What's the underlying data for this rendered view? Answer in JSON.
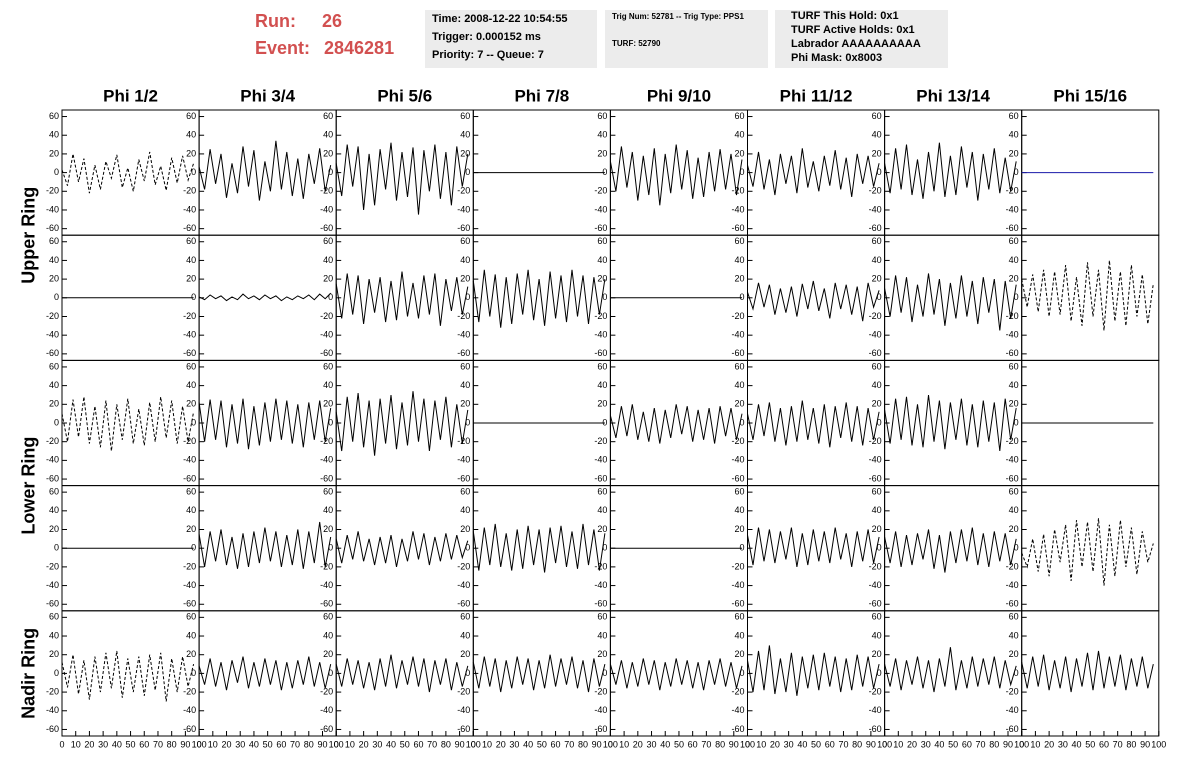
{
  "header": {
    "run_label": "Run:",
    "run": "26",
    "event_label": "Event:",
    "event": "2846281",
    "boxes": [
      {
        "lines": [
          "Time: 2008-12-22 10:54:55",
          "Trigger: 0.000152 ms",
          "Priority: 7 -- Queue: 7"
        ]
      },
      {
        "lines": [
          "Trig Num: 52781 -- Trig Type: PPS1",
          "TURF: 52790"
        ]
      },
      {
        "lines": [
          "TURF This Hold: 0x1",
          "TURF Active Holds: 0x1",
          "Labrador AAAAAAAAAA",
          "Phi Mask: 0x8003"
        ]
      }
    ]
  },
  "chart_data": {
    "type": "line",
    "columns": [
      "Phi 1/2",
      "Phi 3/4",
      "Phi 5/6",
      "Phi 7/8",
      "Phi 9/10",
      "Phi 11/12",
      "Phi 13/14",
      "Phi 15/16"
    ],
    "rows": [
      "Upper Ring",
      "Lower Ring",
      "Nadir Ring"
    ],
    "ylim": [
      -67,
      67
    ],
    "yticks": [
      60,
      40,
      20,
      0,
      -20,
      -40,
      -60
    ],
    "xlim": [
      0,
      100
    ],
    "xticks": [
      0,
      10,
      20,
      30,
      40,
      50,
      60,
      70,
      80,
      90,
      100
    ],
    "x": [
      0,
      4,
      8,
      12,
      16,
      20,
      24,
      28,
      32,
      36,
      40,
      44,
      48,
      52,
      56,
      60,
      64,
      68,
      72,
      76,
      80,
      84,
      88,
      92,
      96
    ],
    "panels": [
      {
        "color": "#000000",
        "dashed": true,
        "values": [
          3,
          -14,
          20,
          -10,
          15,
          -22,
          8,
          -18,
          12,
          -6,
          19,
          -16,
          5,
          -20,
          14,
          -9,
          22,
          -13,
          7,
          -19,
          16,
          -11,
          18,
          -8,
          10
        ]
      },
      {
        "color": "#000000",
        "dashed": false,
        "values": [
          6,
          -18,
          25,
          -12,
          20,
          -27,
          10,
          -22,
          28,
          -15,
          24,
          -30,
          12,
          -20,
          34,
          -18,
          22,
          -25,
          15,
          -28,
          20,
          -12,
          26,
          -20,
          8
        ]
      },
      {
        "color": "#000000",
        "dashed": false,
        "values": [
          10,
          -25,
          30,
          -15,
          28,
          -40,
          20,
          -35,
          25,
          -18,
          32,
          -30,
          22,
          -26,
          27,
          -45,
          24,
          -20,
          30,
          -28,
          22,
          -35,
          28,
          -15,
          20
        ]
      },
      {
        "color": "#000000",
        "dashed": false,
        "values": [
          0,
          0,
          0,
          0,
          0,
          0,
          0,
          0,
          0,
          0,
          0,
          0,
          0,
          0,
          0,
          0,
          0,
          0,
          0,
          0,
          0,
          0,
          0,
          0,
          0
        ]
      },
      {
        "color": "#000000",
        "dashed": false,
        "values": [
          12,
          -20,
          28,
          -16,
          22,
          -30,
          18,
          -24,
          26,
          -35,
          20,
          -22,
          30,
          -18,
          24,
          -28,
          16,
          -26,
          22,
          -20,
          25,
          -18,
          20,
          -24,
          14
        ]
      },
      {
        "color": "#000000",
        "dashed": false,
        "values": [
          8,
          -15,
          22,
          -18,
          14,
          -24,
          20,
          -12,
          18,
          -22,
          26,
          -16,
          12,
          -20,
          18,
          -14,
          24,
          -18,
          16,
          -26,
          20,
          -12,
          18,
          -15,
          10
        ]
      },
      {
        "color": "#000000",
        "dashed": false,
        "values": [
          10,
          -22,
          26,
          -18,
          30,
          -24,
          14,
          -28,
          22,
          -20,
          32,
          -26,
          18,
          -24,
          28,
          -16,
          22,
          -30,
          20,
          -18,
          26,
          -22,
          16,
          -20,
          12
        ]
      },
      {
        "color": "#1a1aaa",
        "dashed": false,
        "values": [
          0,
          0,
          0,
          0,
          0,
          0,
          0,
          0,
          0,
          0,
          0,
          0,
          0,
          0,
          0,
          0,
          0,
          0,
          0,
          0,
          0,
          0,
          0,
          0,
          0
        ]
      },
      {
        "color": "#000000",
        "dashed": false,
        "values": [
          0,
          0,
          0,
          0,
          0,
          0,
          0,
          0,
          0,
          0,
          0,
          0,
          0,
          0,
          0,
          0,
          0,
          0,
          0,
          0,
          0,
          0,
          0,
          0,
          0
        ]
      },
      {
        "color": "#000000",
        "dashed": false,
        "values": [
          1,
          -2,
          3,
          -1,
          2,
          -3,
          1,
          -2,
          4,
          -1,
          2,
          -2,
          3,
          -1,
          2,
          -3,
          1,
          -2,
          2,
          -1,
          3,
          -2,
          4,
          -1,
          5
        ]
      },
      {
        "color": "#000000",
        "dashed": false,
        "values": [
          15,
          -22,
          26,
          -18,
          24,
          -28,
          20,
          -16,
          22,
          -26,
          18,
          -24,
          28,
          -20,
          16,
          -22,
          24,
          -18,
          26,
          -30,
          20,
          -14,
          22,
          -18,
          12
        ]
      },
      {
        "color": "#000000",
        "dashed": false,
        "values": [
          18,
          -26,
          30,
          -20,
          25,
          -32,
          22,
          -28,
          26,
          -18,
          30,
          -24,
          20,
          -30,
          28,
          -22,
          24,
          -26,
          30,
          -20,
          24,
          -28,
          22,
          -18,
          20
        ]
      },
      {
        "color": "#000000",
        "dashed": false,
        "values": [
          0,
          0,
          0,
          0,
          0,
          0,
          0,
          0,
          0,
          0,
          0,
          0,
          0,
          0,
          0,
          0,
          0,
          0,
          0,
          0,
          0,
          0,
          0,
          0,
          0
        ]
      },
      {
        "color": "#000000",
        "dashed": false,
        "values": [
          6,
          -12,
          16,
          -10,
          14,
          -18,
          10,
          -16,
          12,
          -20,
          15,
          -12,
          18,
          -14,
          10,
          -22,
          16,
          -12,
          14,
          -18,
          12,
          -25,
          16,
          -10,
          8
        ]
      },
      {
        "color": "#000000",
        "dashed": false,
        "values": [
          10,
          -20,
          24,
          -16,
          22,
          -26,
          14,
          -20,
          26,
          -18,
          20,
          -30,
          16,
          -22,
          24,
          -20,
          18,
          -28,
          22,
          -16,
          20,
          -35,
          18,
          -22,
          14
        ]
      },
      {
        "color": "#000000",
        "dashed": true,
        "values": [
          20,
          -10,
          25,
          -15,
          30,
          -20,
          28,
          -18,
          35,
          -25,
          22,
          -30,
          38,
          -20,
          30,
          -35,
          40,
          -25,
          28,
          -30,
          35,
          -20,
          25,
          -28,
          15
        ]
      },
      {
        "color": "#000000",
        "dashed": true,
        "values": [
          10,
          -20,
          25,
          -15,
          28,
          -22,
          18,
          -26,
          24,
          -30,
          20,
          -18,
          26,
          -22,
          15,
          -24,
          22,
          -20,
          28,
          -16,
          24,
          -22,
          18,
          -20,
          12
        ]
      },
      {
        "color": "#000000",
        "dashed": false,
        "values": [
          22,
          -20,
          25,
          -18,
          24,
          -26,
          20,
          -22,
          26,
          -28,
          18,
          -24,
          22,
          -20,
          26,
          -18,
          24,
          -22,
          20,
          -26,
          22,
          -18,
          24,
          -20,
          16
        ]
      },
      {
        "color": "#000000",
        "dashed": false,
        "values": [
          12,
          -30,
          28,
          -20,
          32,
          -26,
          24,
          -35,
          26,
          -22,
          30,
          -28,
          22,
          -24,
          34,
          -20,
          26,
          -30,
          24,
          -18,
          28,
          -26,
          20,
          -22,
          14
        ]
      },
      {
        "color": "#000000",
        "dashed": false,
        "values": [
          0,
          0,
          0,
          0,
          0,
          0,
          0,
          0,
          0,
          0,
          0,
          0,
          0,
          0,
          0,
          0,
          0,
          0,
          0,
          0,
          0,
          0,
          0,
          0,
          0
        ]
      },
      {
        "color": "#000000",
        "dashed": false,
        "values": [
          8,
          -16,
          18,
          -14,
          20,
          -18,
          12,
          -20,
          16,
          -22,
          14,
          -16,
          20,
          -12,
          18,
          -20,
          14,
          -18,
          16,
          -22,
          18,
          -14,
          16,
          -18,
          10
        ]
      },
      {
        "color": "#000000",
        "dashed": false,
        "values": [
          10,
          -18,
          20,
          -14,
          22,
          -20,
          16,
          -24,
          18,
          -20,
          24,
          -18,
          16,
          -22,
          20,
          -26,
          18,
          -16,
          22,
          -20,
          18,
          -24,
          16,
          -18,
          12
        ]
      },
      {
        "color": "#000000",
        "dashed": false,
        "values": [
          14,
          -22,
          26,
          -18,
          28,
          -24,
          20,
          -26,
          30,
          -20,
          24,
          -28,
          22,
          -18,
          26,
          -24,
          20,
          -26,
          24,
          -20,
          22,
          -30,
          26,
          -18,
          16
        ]
      },
      {
        "color": "#000000",
        "dashed": false,
        "values": [
          0,
          0,
          0,
          0,
          0,
          0,
          0,
          0,
          0,
          0,
          0,
          0,
          0,
          0,
          0,
          0,
          0,
          0,
          0,
          0,
          0,
          0,
          0,
          0,
          0
        ]
      },
      {
        "color": "#000000",
        "dashed": false,
        "values": [
          0,
          0,
          0,
          0,
          0,
          0,
          0,
          0,
          0,
          0,
          0,
          0,
          0,
          0,
          0,
          0,
          0,
          0,
          0,
          0,
          0,
          0,
          0,
          0,
          0
        ]
      },
      {
        "color": "#000000",
        "dashed": false,
        "values": [
          15,
          -20,
          18,
          -14,
          20,
          -18,
          12,
          -22,
          16,
          -20,
          18,
          -16,
          22,
          -14,
          18,
          -20,
          14,
          -18,
          20,
          -22,
          18,
          -16,
          28,
          -20,
          12
        ]
      },
      {
        "color": "#000000",
        "dashed": false,
        "values": [
          10,
          -16,
          14,
          -12,
          18,
          -14,
          10,
          -18,
          12,
          -16,
          14,
          -20,
          10,
          -14,
          18,
          -12,
          16,
          -18,
          12,
          -14,
          16,
          -12,
          14,
          -10,
          8
        ]
      },
      {
        "color": "#000000",
        "dashed": false,
        "values": [
          18,
          -24,
          22,
          -18,
          26,
          -20,
          16,
          -24,
          20,
          -22,
          24,
          -18,
          20,
          -26,
          22,
          -16,
          24,
          -20,
          18,
          -22,
          26,
          -18,
          20,
          -24,
          16
        ]
      },
      {
        "color": "#000000",
        "dashed": false,
        "values": [
          0,
          0,
          0,
          0,
          0,
          0,
          0,
          0,
          0,
          0,
          0,
          0,
          0,
          0,
          0,
          0,
          0,
          0,
          0,
          0,
          0,
          0,
          0,
          0,
          0
        ]
      },
      {
        "color": "#000000",
        "dashed": false,
        "values": [
          14,
          -18,
          22,
          -14,
          20,
          -16,
          18,
          -12,
          22,
          -20,
          16,
          -18,
          20,
          -14,
          18,
          -16,
          22,
          -12,
          16,
          -20,
          18,
          -14,
          20,
          -16,
          12
        ]
      },
      {
        "color": "#000000",
        "dashed": false,
        "values": [
          12,
          -16,
          18,
          -20,
          14,
          -18,
          16,
          -12,
          20,
          -22,
          14,
          -26,
          18,
          -16,
          20,
          -14,
          22,
          -18,
          16,
          -20,
          18,
          -14,
          16,
          -18,
          10
        ]
      },
      {
        "color": "#000000",
        "dashed": true,
        "values": [
          -5,
          -20,
          10,
          -25,
          15,
          -30,
          20,
          -15,
          25,
          -35,
          30,
          -20,
          28,
          -25,
          32,
          -40,
          25,
          -30,
          30,
          -20,
          22,
          -28,
          18,
          -15,
          5
        ]
      },
      {
        "color": "#000000",
        "dashed": true,
        "values": [
          12,
          -15,
          20,
          -22,
          14,
          -28,
          18,
          -20,
          22,
          -16,
          24,
          -26,
          16,
          -20,
          18,
          -24,
          20,
          -18,
          22,
          -30,
          16,
          -20,
          18,
          -14,
          10
        ]
      },
      {
        "color": "#000000",
        "dashed": false,
        "values": [
          8,
          -12,
          16,
          -14,
          12,
          -18,
          14,
          -10,
          18,
          -16,
          12,
          -14,
          16,
          -12,
          14,
          -18,
          12,
          -16,
          14,
          -12,
          18,
          -14,
          12,
          -16,
          10
        ]
      },
      {
        "color": "#000000",
        "dashed": false,
        "values": [
          10,
          -14,
          16,
          -12,
          14,
          -16,
          12,
          -18,
          16,
          -14,
          20,
          -16,
          14,
          -12,
          18,
          -14,
          16,
          -20,
          14,
          -12,
          16,
          -18,
          12,
          -14,
          8
        ]
      },
      {
        "color": "#000000",
        "dashed": false,
        "values": [
          12,
          -16,
          18,
          -14,
          16,
          -20,
          14,
          -16,
          18,
          -12,
          16,
          -18,
          14,
          -16,
          20,
          -14,
          16,
          -12,
          18,
          -16,
          14,
          -20,
          16,
          -14,
          10
        ]
      },
      {
        "color": "#000000",
        "dashed": false,
        "values": [
          10,
          -12,
          14,
          -16,
          12,
          -14,
          16,
          -12,
          14,
          -18,
          12,
          -14,
          16,
          -12,
          14,
          -16,
          12,
          -18,
          14,
          -12,
          16,
          -14,
          12,
          -16,
          8
        ]
      },
      {
        "color": "#000000",
        "dashed": false,
        "values": [
          14,
          -20,
          24,
          -18,
          30,
          -22,
          16,
          -20,
          22,
          -24,
          18,
          -16,
          20,
          -18,
          22,
          -14,
          18,
          -20,
          16,
          -18,
          20,
          -14,
          18,
          -16,
          10
        ]
      },
      {
        "color": "#000000",
        "dashed": false,
        "values": [
          10,
          -14,
          16,
          -18,
          14,
          -12,
          18,
          -16,
          14,
          -20,
          16,
          -14,
          28,
          -18,
          14,
          -16,
          18,
          -14,
          16,
          -12,
          18,
          -16,
          14,
          -12,
          8
        ]
      },
      {
        "color": "#000000",
        "dashed": false,
        "values": [
          12,
          -16,
          18,
          -14,
          20,
          -18,
          14,
          -16,
          18,
          -20,
          16,
          -14,
          22,
          -18,
          24,
          -16,
          18,
          -14,
          20,
          -18,
          16,
          -14,
          18,
          -16,
          10
        ]
      }
    ]
  }
}
